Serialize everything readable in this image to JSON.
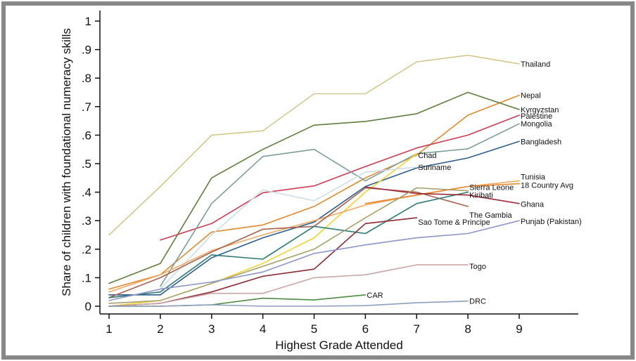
{
  "chart_data": {
    "type": "line",
    "xlabel": "Highest Grade Attended",
    "ylabel": "Share of children with foundational numeracy skills",
    "xlim": [
      1,
      10
    ],
    "ylim": [
      0,
      1
    ],
    "x_ticks": [
      1,
      2,
      3,
      4,
      5,
      6,
      7,
      8,
      9
    ],
    "y_ticks": [
      {
        "value": 0,
        "label": "0"
      },
      {
        "value": 0.1,
        "label": ".1"
      },
      {
        "value": 0.2,
        "label": ".2"
      },
      {
        "value": 0.3,
        "label": ".3"
      },
      {
        "value": 0.4,
        "label": ".4"
      },
      {
        "value": 0.5,
        "label": ".5"
      },
      {
        "value": 0.6,
        "label": ".6"
      },
      {
        "value": 0.7,
        "label": ".7"
      },
      {
        "value": 0.8,
        "label": ".8"
      },
      {
        "value": 0.9,
        "label": ".9"
      },
      {
        "value": 1,
        "label": "1"
      }
    ],
    "grid": false,
    "legend": "direct labels at line ends",
    "frame_color": "#888888",
    "series": [
      {
        "name": "Thailand",
        "color": "#d4c78e",
        "x": [
          1,
          2,
          3,
          4,
          5,
          6,
          7,
          8,
          9
        ],
        "y": [
          0.25,
          0.42,
          0.6,
          0.615,
          0.745,
          0.745,
          0.857,
          0.88,
          0.85
        ],
        "label_y": 0.85
      },
      {
        "name": "Nepal",
        "color": "#e08a2e",
        "x": [
          1,
          2,
          3,
          4,
          5,
          6,
          7,
          8,
          9
        ],
        "y": [
          0.06,
          0.11,
          0.26,
          0.285,
          0.35,
          0.45,
          0.53,
          0.67,
          0.74
        ],
        "label_y": 0.74
      },
      {
        "name": "Kyrgyzstan",
        "color": "#5e7e3e",
        "x": [
          1,
          2,
          3,
          4,
          5,
          6,
          7,
          8,
          9
        ],
        "y": [
          0.08,
          0.15,
          0.45,
          0.55,
          0.635,
          0.648,
          0.675,
          0.75,
          0.69
        ],
        "label_y": 0.69
      },
      {
        "name": "Palestine",
        "color": "#cc3c52",
        "x": [
          2,
          3,
          4,
          5,
          6,
          7,
          8,
          9
        ],
        "y": [
          0.232,
          0.29,
          0.398,
          0.422,
          0.49,
          0.555,
          0.6,
          0.67
        ],
        "label_y": 0.668
      },
      {
        "name": "Mongolia",
        "color": "#7e9e9a",
        "x": [
          2,
          3,
          4,
          5,
          6,
          7,
          8,
          9
        ],
        "y": [
          0.07,
          0.36,
          0.525,
          0.55,
          0.44,
          0.535,
          0.552,
          0.64
        ],
        "label_y": 0.64
      },
      {
        "name": "Bangladesh",
        "color": "#2f5e8e",
        "x": [
          1,
          2,
          3,
          4,
          5,
          6,
          7,
          8,
          9
        ],
        "y": [
          0.04,
          0.04,
          0.17,
          0.24,
          0.295,
          0.42,
          0.485,
          0.52,
          0.578
        ],
        "label_y": 0.578
      },
      {
        "name": "Chad",
        "color": "#f0d53a",
        "x": [
          1,
          2,
          3,
          4,
          5,
          6,
          7
        ],
        "y": [
          0.0,
          0.02,
          0.08,
          0.15,
          0.24,
          0.4,
          0.535
        ],
        "label_y": 0.53
      },
      {
        "name": "Suriname",
        "color": "#cfdde6",
        "x": [
          2,
          3,
          4,
          5,
          6,
          7
        ],
        "y": [
          0.06,
          0.25,
          0.408,
          0.37,
          0.47,
          0.488
        ],
        "label_y": 0.488
      },
      {
        "name": "Tunisia",
        "color": "#f0a862",
        "x": [
          1,
          2,
          3,
          4,
          5,
          6,
          7,
          8,
          9
        ],
        "y": [
          0.05,
          0.11,
          0.195,
          0.25,
          0.3,
          0.355,
          0.39,
          0.42,
          0.44
        ],
        "label_y": 0.455
      },
      {
        "name": "Sierra Leone",
        "color": "#a6624e",
        "x": [
          1,
          2,
          3,
          4,
          5,
          6,
          7,
          8
        ],
        "y": [
          0.03,
          0.1,
          0.19,
          0.27,
          0.28,
          0.415,
          0.4,
          0.35
        ],
        "label_y": 0.417
      },
      {
        "name": "18 Country Avg",
        "color": "#e8862c",
        "x": [
          6,
          7,
          8,
          9
        ],
        "y": [
          0.36,
          0.39,
          0.42,
          0.43
        ],
        "label_y": 0.425,
        "label_color": "#e8862c"
      },
      {
        "name": "Kiribati",
        "color": "#2e7a76",
        "x": [
          1,
          2,
          3,
          4,
          5,
          6,
          7,
          8
        ],
        "y": [
          0.03,
          0.05,
          0.18,
          0.165,
          0.28,
          0.255,
          0.36,
          0.4
        ],
        "label_y": 0.39
      },
      {
        "name": "Ghana",
        "color": "#9e2a3a",
        "x": [
          6,
          7,
          8,
          9
        ],
        "y": [
          0.418,
          0.395,
          0.39,
          0.36
        ],
        "label_y": 0.358
      },
      {
        "name": "The Gambia",
        "color": "#a8a06a",
        "x": [
          1,
          2,
          3,
          4,
          5,
          6,
          7,
          8
        ],
        "y": [
          0.01,
          0.02,
          0.08,
          0.14,
          0.2,
          0.31,
          0.415,
          0.405
        ],
        "label_y": 0.32
      },
      {
        "name": "Sao Tome & Principe",
        "color": "#8e2a34",
        "x": [
          1,
          2,
          3,
          4,
          5,
          6,
          7
        ],
        "y": [
          0.0,
          0.01,
          0.05,
          0.105,
          0.13,
          0.29,
          0.31
        ],
        "label_y": 0.295
      },
      {
        "name": "Punjab (Pakistan)",
        "color": "#8e96c8",
        "x": [
          1,
          2,
          3,
          4,
          5,
          6,
          7,
          8,
          9
        ],
        "y": [
          0.02,
          0.06,
          0.085,
          0.12,
          0.185,
          0.215,
          0.24,
          0.255,
          0.3
        ],
        "label_y": 0.298
      },
      {
        "name": "Togo",
        "color": "#c8a6a6",
        "x": [
          1,
          2,
          3,
          4,
          5,
          6,
          7,
          8
        ],
        "y": [
          0.0,
          0.01,
          0.045,
          0.045,
          0.1,
          0.11,
          0.145,
          0.145
        ],
        "label_y": 0.14
      },
      {
        "name": "CAR",
        "color": "#4e8a42",
        "x": [
          1,
          2,
          3,
          4,
          5,
          6
        ],
        "y": [
          0.0,
          0.0,
          0.005,
          0.028,
          0.022,
          0.04
        ],
        "label_y": 0.04
      },
      {
        "name": "DRC",
        "color": "#8e9ebe",
        "x": [
          1,
          2,
          3,
          4,
          5,
          6,
          7,
          8
        ],
        "y": [
          0.0,
          0.0,
          0.005,
          0.0,
          0.0,
          0.002,
          0.012,
          0.018
        ],
        "label_y": 0.018
      }
    ]
  }
}
